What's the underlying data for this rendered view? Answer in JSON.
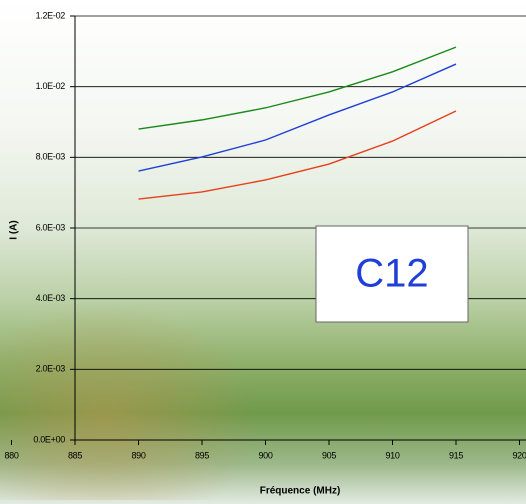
{
  "chart_data": {
    "type": "line",
    "x_label": "Fréquence (MHz)",
    "y_label": "I (A)",
    "annotation": "C12",
    "x": [
      890,
      895,
      900,
      905,
      910,
      915
    ],
    "series": [
      {
        "color": "#1a8a1a",
        "values": [
          0.0088,
          0.00906,
          0.0094,
          0.00985,
          0.01042,
          0.01112
        ]
      },
      {
        "color": "#1f3fd8",
        "values": [
          0.00761,
          0.00801,
          0.00849,
          0.0092,
          0.00985,
          0.01064
        ]
      },
      {
        "color": "#e8401a",
        "values": [
          0.00682,
          0.00702,
          0.00736,
          0.00781,
          0.00846,
          0.00931
        ]
      }
    ],
    "xlim": [
      880,
      920
    ],
    "xticks": [
      880,
      885,
      890,
      895,
      900,
      905,
      910,
      915,
      920
    ],
    "ylim": [
      0,
      0.012
    ],
    "yticks": [
      {
        "value": 0,
        "label": "0.0E+00"
      },
      {
        "value": 0.002,
        "label": "2.0E-03"
      },
      {
        "value": 0.004,
        "label": "4.0E-03"
      },
      {
        "value": 0.006,
        "label": "6.0E-03"
      },
      {
        "value": 0.008,
        "label": "8.0E-03"
      },
      {
        "value": 0.01,
        "label": "1.0E-02"
      },
      {
        "value": 0.012,
        "label": "1.2E-02"
      }
    ],
    "grid": true
  }
}
